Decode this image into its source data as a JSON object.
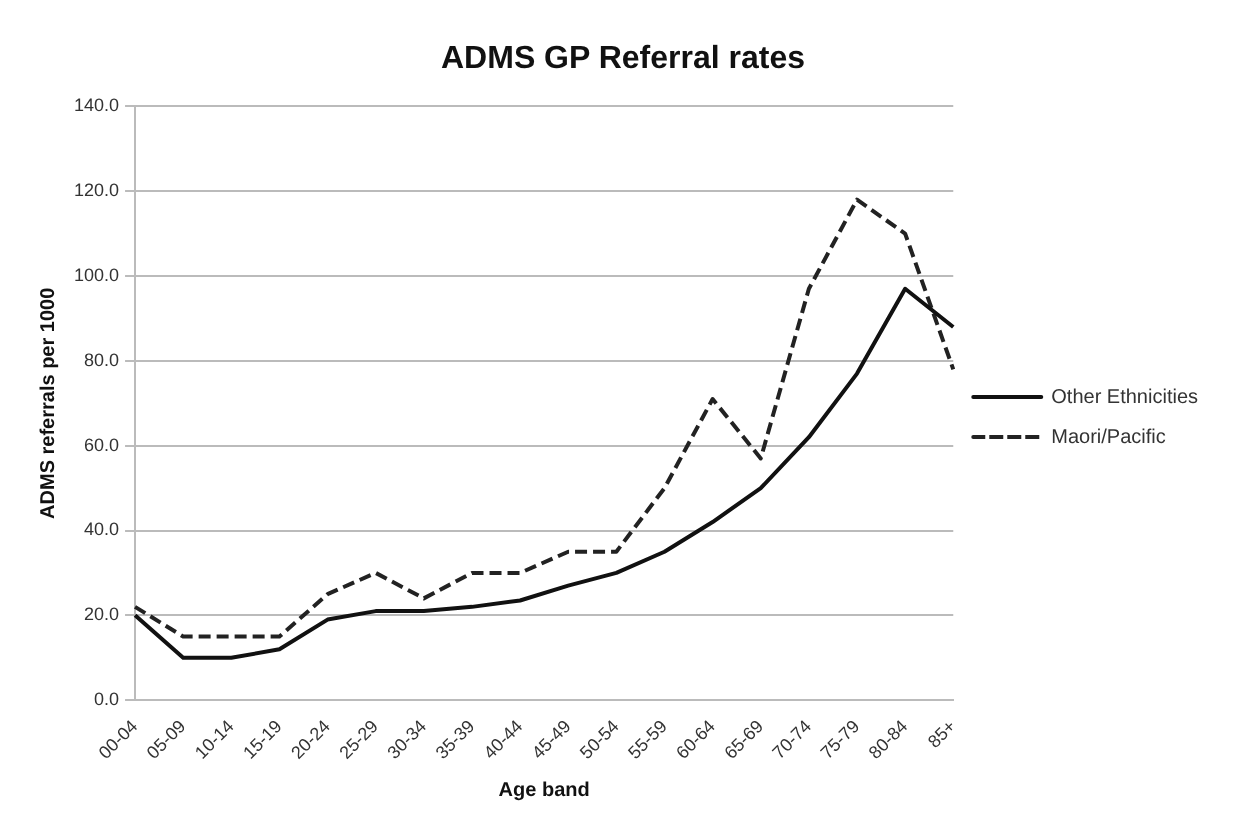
{
  "chart_data": {
    "type": "line",
    "title": "ADMS GP Referral rates",
    "xlabel": "Age band",
    "ylabel": "ADMS referrals per 1000",
    "categories": [
      "00-04",
      "05-09",
      "10-14",
      "15-19",
      "20-24",
      "25-29",
      "30-34",
      "35-39",
      "40-44",
      "45-49",
      "50-54",
      "55-59",
      "60-64",
      "65-69",
      "70-74",
      "75-79",
      "80-84",
      "85+"
    ],
    "series": [
      {
        "name": "Other Ethnicities",
        "color": "#111111",
        "line_style": "solid",
        "values": [
          20,
          10,
          10,
          12,
          19,
          21,
          21,
          22,
          23.5,
          27,
          30,
          35,
          42,
          50,
          62,
          77,
          97,
          88
        ]
      },
      {
        "name": "Maori/Pacific",
        "color": "#222222",
        "line_style": "dashed",
        "values": [
          22,
          15,
          15,
          15,
          25,
          30,
          24,
          30,
          30,
          35,
          35,
          50,
          71,
          57,
          97,
          118,
          110,
          78
        ]
      }
    ],
    "ylim": [
      0,
      140
    ],
    "yticks": [
      {
        "value": 0,
        "label": "0.0"
      },
      {
        "value": 20,
        "label": "20.0"
      },
      {
        "value": 40,
        "label": "40.0"
      },
      {
        "value": 60,
        "label": "60.0"
      },
      {
        "value": 80,
        "label": "80.0"
      },
      {
        "value": 100,
        "label": "100.0"
      },
      {
        "value": 120,
        "label": "120.0"
      },
      {
        "value": 140,
        "label": "140.0"
      }
    ],
    "grid": "y",
    "legend": "right",
    "marker": "none"
  }
}
